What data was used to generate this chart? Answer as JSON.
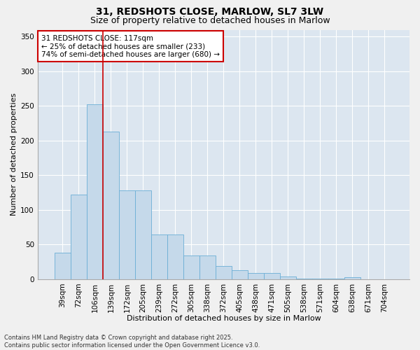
{
  "title1": "31, REDSHOTS CLOSE, MARLOW, SL7 3LW",
  "title2": "Size of property relative to detached houses in Marlow",
  "xlabel": "Distribution of detached houses by size in Marlow",
  "ylabel": "Number of detached properties",
  "categories": [
    "39sqm",
    "72sqm",
    "106sqm",
    "139sqm",
    "172sqm",
    "205sqm",
    "239sqm",
    "272sqm",
    "305sqm",
    "338sqm",
    "372sqm",
    "405sqm",
    "438sqm",
    "471sqm",
    "505sqm",
    "538sqm",
    "571sqm",
    "604sqm",
    "638sqm",
    "671sqm",
    "704sqm"
  ],
  "values": [
    38,
    122,
    252,
    213,
    128,
    128,
    65,
    65,
    34,
    34,
    19,
    13,
    9,
    9,
    4,
    1,
    1,
    1,
    3,
    0,
    0
  ],
  "bar_color": "#c5d9ea",
  "bar_edgecolor": "#6baed6",
  "vline_x": 2.5,
  "vline_color": "#cc0000",
  "annotation_text": "31 REDSHOTS CLOSE: 117sqm\n← 25% of detached houses are smaller (233)\n74% of semi-detached houses are larger (680) →",
  "annotation_box_color": "#cc0000",
  "annotation_fontsize": 7.5,
  "ylim": [
    0,
    360
  ],
  "yticks": [
    0,
    50,
    100,
    150,
    200,
    250,
    300,
    350
  ],
  "plot_bg": "#dce6f0",
  "fig_bg": "#f0f0f0",
  "footnote": "Contains HM Land Registry data © Crown copyright and database right 2025.\nContains public sector information licensed under the Open Government Licence v3.0.",
  "title_fontsize": 10,
  "subtitle_fontsize": 9,
  "xlabel_fontsize": 8,
  "ylabel_fontsize": 8,
  "tick_fontsize": 7.5
}
